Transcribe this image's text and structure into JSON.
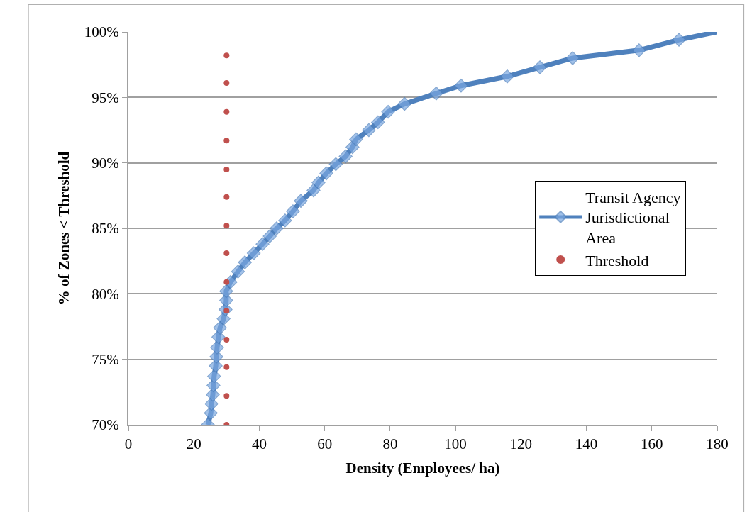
{
  "chart_data": {
    "type": "line",
    "xlabel": "Density (Employees/ ha)",
    "ylabel": "% of Zones < Threshold",
    "xlim": [
      0,
      180
    ],
    "xticks": [
      0,
      20,
      40,
      60,
      80,
      100,
      120,
      140,
      160,
      180
    ],
    "ylim": [
      70,
      100
    ],
    "yticks": [
      {
        "value": 70,
        "label": "70%"
      },
      {
        "value": 75,
        "label": "75%"
      },
      {
        "value": 80,
        "label": "80%"
      },
      {
        "value": 85,
        "label": "85%"
      },
      {
        "value": 90,
        "label": "90%"
      },
      {
        "value": 95,
        "label": "95%"
      },
      {
        "value": 100,
        "label": "100%"
      }
    ],
    "grid": "y",
    "legend": "right",
    "series": [
      {
        "name": "Transit Agency Jurisdictional Area",
        "color": "#4f81bd",
        "marker": "diamond",
        "line_style": "solid",
        "x": [
          24.3,
          25.2,
          25.4,
          25.8,
          26.0,
          26.2,
          26.7,
          26.9,
          27.1,
          27.5,
          28.0,
          29.1,
          29.7,
          29.9,
          29.9,
          31.2,
          33.5,
          35.6,
          38.3,
          41.0,
          43.2,
          45.3,
          47.9,
          50.3,
          52.7,
          56.6,
          58.1,
          60.5,
          63.4,
          66.4,
          68.5,
          69.6,
          73.5,
          76.3,
          79.4,
          84.4,
          94.1,
          101.7,
          115.8,
          125.8,
          135.8,
          156.1,
          168.3,
          180
        ],
        "values": [
          70.0,
          70.9,
          71.6,
          72.3,
          73.0,
          73.7,
          74.5,
          75.2,
          75.9,
          76.7,
          77.4,
          78.1,
          78.8,
          79.5,
          80.2,
          80.9,
          81.7,
          82.4,
          83.1,
          83.8,
          84.4,
          85.0,
          85.6,
          86.3,
          87.1,
          87.9,
          88.5,
          89.2,
          89.9,
          90.5,
          91.2,
          91.8,
          92.5,
          93.1,
          93.9,
          94.5,
          95.3,
          95.9,
          96.6,
          97.3,
          98.0,
          98.6,
          99.4,
          100
        ]
      },
      {
        "name": "Threshold",
        "type": "scatter",
        "color": "#c0504d",
        "marker": "circle",
        "x": [
          30,
          30,
          30,
          30,
          30,
          30,
          30,
          30,
          30,
          30,
          30,
          30,
          30,
          30
        ],
        "values": [
          70.0,
          72.2,
          74.4,
          76.5,
          78.7,
          80.9,
          83.1,
          85.2,
          87.4,
          89.5,
          91.7,
          93.9,
          96.1,
          98.2
        ]
      }
    ]
  }
}
